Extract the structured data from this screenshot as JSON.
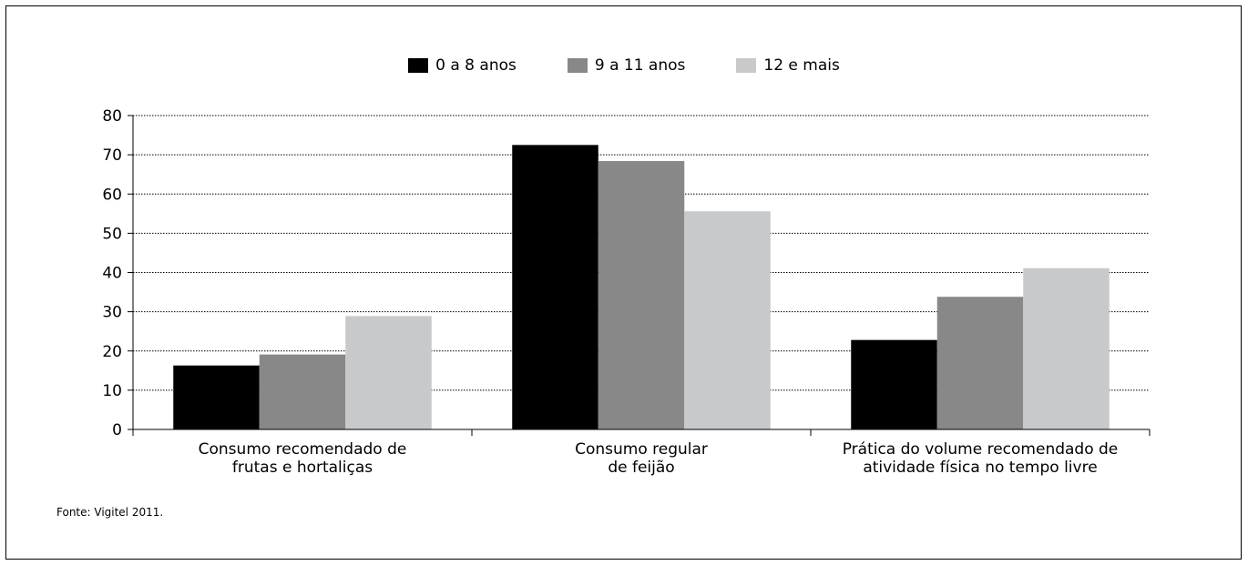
{
  "chart_data": {
    "type": "bar",
    "categories": [
      "Consumo recomendado de\nfrutas e hortaliças",
      "Consumo regular\nde feijão",
      "Prática do volume recomendado de\natividade física no tempo livre"
    ],
    "series": [
      {
        "name": "0 a 8 anos",
        "color": "#000000",
        "values": [
          16.3,
          72.5,
          22.8
        ]
      },
      {
        "name": "9 a 11 anos",
        "color": "#888889",
        "values": [
          19.1,
          68.4,
          33.8
        ]
      },
      {
        "name": "12 e mais",
        "color": "#c8c9ca",
        "values": [
          28.9,
          55.6,
          41.1
        ]
      }
    ],
    "ylim": [
      0,
      80
    ],
    "yticks": [
      0,
      10,
      20,
      30,
      40,
      50,
      60,
      70,
      80
    ],
    "grid": true,
    "legend_position": "top-center"
  },
  "source_note": "Fonte: Vigitel 2011."
}
